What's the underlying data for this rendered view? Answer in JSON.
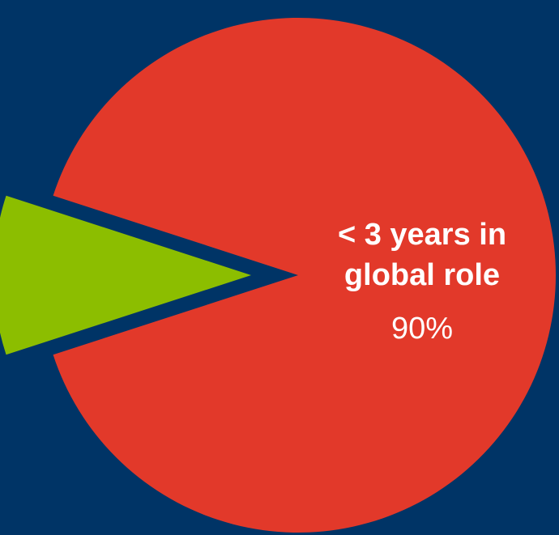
{
  "chart_data": {
    "type": "pie",
    "slices": [
      {
        "label_lines": [
          "< 3 years in",
          "global role"
        ],
        "value_label": "90%",
        "value": 90,
        "color": "#e2392a"
      },
      {
        "label_lines": [],
        "value_label": "",
        "value": 10,
        "color": "#8cbe00"
      }
    ],
    "exploded_slice_index": 1,
    "background_color": "#003466",
    "legend": "none"
  }
}
